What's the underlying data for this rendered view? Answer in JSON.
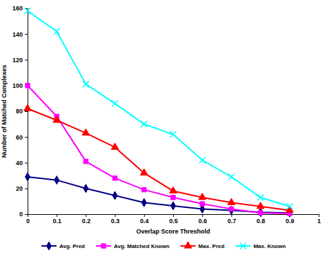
{
  "chart_data": {
    "type": "line",
    "x_label": "Overlap Score Threshold",
    "y_label": "Number of Matched Complexes",
    "x": [
      0,
      0.1,
      0.2,
      0.3,
      0.4,
      0.5,
      0.6,
      0.7,
      0.8,
      0.9
    ],
    "series": [
      {
        "name": "Avg. Pred",
        "color": "#000080",
        "marker": "diamond",
        "values": [
          29,
          26.5,
          20,
          14.5,
          9,
          6.5,
          4,
          3,
          1.5,
          1
        ]
      },
      {
        "name": "Avg. Matched Known",
        "color": "#ff00ff",
        "marker": "square",
        "values": [
          100,
          76,
          41,
          28,
          19,
          13,
          8,
          4,
          1,
          0.5
        ]
      },
      {
        "name": "Max. Pred",
        "color": "#ff0000",
        "marker": "triangle",
        "values": [
          82,
          73,
          63,
          52,
          32,
          18,
          13,
          9,
          6,
          3
        ]
      },
      {
        "name": "Max. Known",
        "color": "#00ffff",
        "marker": "x",
        "values": [
          158,
          142,
          101,
          86,
          70,
          62,
          42,
          29,
          13,
          6
        ]
      }
    ],
    "xlim": [
      0,
      1
    ],
    "xticks": [
      0,
      0.1,
      0.2,
      0.3,
      0.4,
      0.5,
      0.6,
      0.7,
      0.8,
      0.9,
      1
    ],
    "ylim": [
      0,
      160
    ],
    "yticks": [
      0,
      20,
      40,
      60,
      80,
      100,
      120,
      140,
      160
    ],
    "grid": false,
    "legend": "bottom"
  }
}
